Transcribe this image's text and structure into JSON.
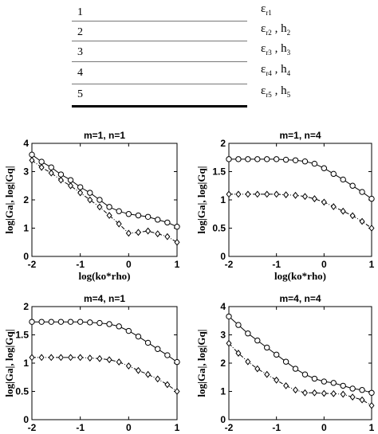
{
  "layers": [
    {
      "num": "1",
      "eps_sub": "r1",
      "h_sub": ""
    },
    {
      "num": "2",
      "eps_sub": "r2",
      "h_sub": "2"
    },
    {
      "num": "3",
      "eps_sub": "r3",
      "h_sub": "3"
    },
    {
      "num": "4",
      "eps_sub": "r4",
      "h_sub": "4"
    },
    {
      "num": "5",
      "eps_sub": "r5",
      "h_sub": "5"
    }
  ],
  "chart_data": [
    {
      "type": "line",
      "title": "m=1, n=1",
      "xlabel": "log(ko*rho)",
      "ylabel": "log|Ga|, log|Gq|",
      "xlim": [
        -2,
        1
      ],
      "ylim": [
        0,
        4
      ],
      "xticks": [
        "-2",
        "-1",
        "0",
        "1"
      ],
      "yticks": [
        "0",
        "1",
        "2",
        "3",
        "4"
      ],
      "series": [
        {
          "marker": "circle",
          "style": "solid",
          "x": [
            -2.0,
            -1.8,
            -1.6,
            -1.4,
            -1.2,
            -1.0,
            -0.8,
            -0.6,
            -0.4,
            -0.2,
            0.0,
            0.2,
            0.4,
            0.6,
            0.8,
            1.0
          ],
          "y": [
            3.6,
            3.35,
            3.15,
            2.9,
            2.7,
            2.45,
            2.25,
            2.0,
            1.75,
            1.6,
            1.5,
            1.45,
            1.4,
            1.3,
            1.2,
            1.05
          ]
        },
        {
          "marker": "diamond",
          "style": "dashdot",
          "x": [
            -2.0,
            -1.8,
            -1.6,
            -1.4,
            -1.2,
            -1.0,
            -0.8,
            -0.6,
            -0.4,
            -0.2,
            0.0,
            0.2,
            0.4,
            0.6,
            0.8,
            1.0
          ],
          "y": [
            3.4,
            3.15,
            2.95,
            2.7,
            2.5,
            2.25,
            2.0,
            1.75,
            1.45,
            1.15,
            0.82,
            0.85,
            0.9,
            0.8,
            0.7,
            0.5
          ]
        }
      ]
    },
    {
      "type": "line",
      "title": "m=1, n=4",
      "xlabel": "log(ko*rho)",
      "ylabel": "log|Ga|, log|Gq|",
      "xlim": [
        -2,
        1
      ],
      "ylim": [
        0,
        2
      ],
      "xticks": [
        "-2",
        "-1",
        "0",
        "1"
      ],
      "yticks": [
        "0",
        "0.5",
        "1",
        "1.5",
        "2"
      ],
      "series": [
        {
          "marker": "circle",
          "style": "solid",
          "x": [
            -2.0,
            -1.8,
            -1.6,
            -1.4,
            -1.2,
            -1.0,
            -0.8,
            -0.6,
            -0.4,
            -0.2,
            0.0,
            0.2,
            0.4,
            0.6,
            0.8,
            1.0
          ],
          "y": [
            1.72,
            1.72,
            1.72,
            1.72,
            1.72,
            1.72,
            1.71,
            1.7,
            1.68,
            1.64,
            1.56,
            1.46,
            1.36,
            1.25,
            1.14,
            1.02
          ]
        },
        {
          "marker": "diamond",
          "style": "dashdot",
          "x": [
            -2.0,
            -1.8,
            -1.6,
            -1.4,
            -1.2,
            -1.0,
            -0.8,
            -0.6,
            -0.4,
            -0.2,
            0.0,
            0.2,
            0.4,
            0.6,
            0.8,
            1.0
          ],
          "y": [
            1.1,
            1.1,
            1.1,
            1.1,
            1.1,
            1.1,
            1.09,
            1.08,
            1.06,
            1.02,
            0.96,
            0.88,
            0.8,
            0.72,
            0.62,
            0.5
          ]
        }
      ]
    },
    {
      "type": "line",
      "title": "m=4, n=1",
      "xlabel": "log(ko*rho)",
      "ylabel": "log|Ga|, log|Gq|",
      "xlim": [
        -2,
        1
      ],
      "ylim": [
        0,
        2
      ],
      "xticks": [
        "-2",
        "-1",
        "0",
        "1"
      ],
      "yticks": [
        "0",
        "0.5",
        "1",
        "1.5",
        "2"
      ],
      "series": [
        {
          "marker": "circle",
          "style": "solid",
          "x": [
            -2.0,
            -1.8,
            -1.6,
            -1.4,
            -1.2,
            -1.0,
            -0.8,
            -0.6,
            -0.4,
            -0.2,
            0.0,
            0.2,
            0.4,
            0.6,
            0.8,
            1.0
          ],
          "y": [
            1.73,
            1.73,
            1.73,
            1.73,
            1.73,
            1.73,
            1.72,
            1.71,
            1.69,
            1.65,
            1.57,
            1.47,
            1.36,
            1.25,
            1.14,
            1.02
          ]
        },
        {
          "marker": "diamond",
          "style": "dashdot",
          "x": [
            -2.0,
            -1.8,
            -1.6,
            -1.4,
            -1.2,
            -1.0,
            -0.8,
            -0.6,
            -0.4,
            -0.2,
            0.0,
            0.2,
            0.4,
            0.6,
            0.8,
            1.0
          ],
          "y": [
            1.1,
            1.1,
            1.1,
            1.1,
            1.1,
            1.1,
            1.09,
            1.08,
            1.06,
            1.02,
            0.95,
            0.87,
            0.8,
            0.72,
            0.62,
            0.5
          ]
        }
      ]
    },
    {
      "type": "line",
      "title": "m=4, n=4",
      "xlabel": "log(ko*rho)",
      "ylabel": "log|Ga|, log|Gq|",
      "xlim": [
        -2,
        1
      ],
      "ylim": [
        0,
        4
      ],
      "xticks": [
        "-2",
        "-1",
        "0",
        "1"
      ],
      "yticks": [
        "0",
        "1",
        "2",
        "3",
        "4"
      ],
      "series": [
        {
          "marker": "circle",
          "style": "solid",
          "x": [
            -2.0,
            -1.8,
            -1.6,
            -1.4,
            -1.2,
            -1.0,
            -0.8,
            -0.6,
            -0.4,
            -0.2,
            0.0,
            0.2,
            0.4,
            0.6,
            0.8,
            1.0
          ],
          "y": [
            3.65,
            3.35,
            3.05,
            2.8,
            2.55,
            2.3,
            2.05,
            1.8,
            1.6,
            1.45,
            1.35,
            1.3,
            1.2,
            1.1,
            1.05,
            0.95
          ]
        },
        {
          "marker": "diamond",
          "style": "dashdot",
          "x": [
            -2.0,
            -1.8,
            -1.6,
            -1.4,
            -1.2,
            -1.0,
            -0.8,
            -0.6,
            -0.4,
            -0.2,
            0.0,
            0.2,
            0.4,
            0.6,
            0.8,
            1.0
          ],
          "y": [
            2.7,
            2.35,
            2.05,
            1.8,
            1.6,
            1.4,
            1.2,
            1.05,
            0.95,
            0.95,
            0.93,
            0.92,
            0.9,
            0.8,
            0.7,
            0.5
          ]
        }
      ]
    }
  ]
}
